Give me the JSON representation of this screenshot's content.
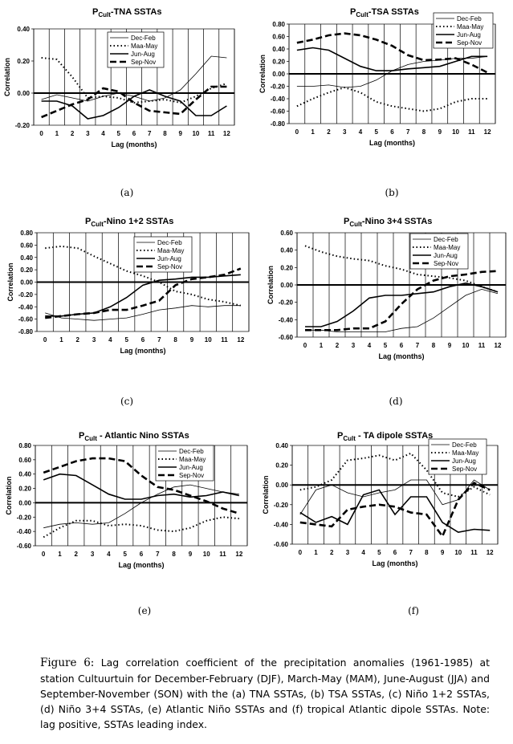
{
  "legend_labels": [
    "Dec-Feb",
    "Maa-May",
    "Jun-Aug",
    "Sep-Nov"
  ],
  "caption": {
    "lead": "Figure 6:",
    "text": "Lag correlation coefficient of the precipitation anomalies (1961-1985) at station Cultuurtuin for December-February (DJF), March-May (MAM), June-August (JJA) and September-November (SON) with the (a) TNA SSTAs, (b) TSA SSTAs, (c) Niño 1+2 SSTAs, (d) Niño 3+4 SSTAs, (e) Atlantic Niño SSTAs and (f) tropical Atlantic dipole SSTAs. Note: lag positive, SSTAs leading index."
  },
  "chart_data": [
    {
      "type": "line",
      "panel": "(a)",
      "title_sub": "Cult",
      "title_rest": "-TNA SSTAs",
      "xlabel": "Lag (months)",
      "ylabel": "Correlation",
      "x": [
        0,
        1,
        2,
        3,
        4,
        5,
        6,
        7,
        8,
        9,
        10,
        11,
        12
      ],
      "ylim": [
        -0.2,
        0.4
      ],
      "yticks": [
        "0.40",
        "0.20",
        "0.00",
        "-0.20"
      ],
      "ytick_values": [
        0.4,
        0.2,
        0.0,
        -0.2
      ],
      "series": [
        {
          "name": "Dec-Feb",
          "values": [
            -0.04,
            -0.01,
            -0.03,
            -0.05,
            -0.02,
            0.0,
            -0.02,
            -0.05,
            -0.03,
            0.02,
            0.12,
            0.23,
            0.22
          ]
        },
        {
          "name": "Maa-May",
          "values": [
            0.22,
            0.21,
            0.1,
            -0.03,
            -0.02,
            -0.03,
            -0.06,
            -0.05,
            -0.04,
            -0.06,
            -0.02,
            0.03,
            0.06
          ]
        },
        {
          "name": "Jun-Aug",
          "values": [
            -0.05,
            -0.05,
            -0.08,
            -0.16,
            -0.14,
            -0.09,
            -0.02,
            0.02,
            -0.02,
            -0.05,
            -0.14,
            -0.14,
            -0.08
          ]
        },
        {
          "name": "Sep-Nov",
          "values": [
            -0.15,
            -0.11,
            -0.07,
            -0.04,
            0.03,
            0.01,
            -0.06,
            -0.11,
            -0.12,
            -0.13,
            -0.04,
            0.04,
            0.04
          ]
        }
      ]
    },
    {
      "type": "line",
      "panel": "(b)",
      "title_sub": "Cult",
      "title_rest": "-TSA SSTAs",
      "xlabel": "Lag (months)",
      "ylabel": "Correlation",
      "x": [
        0,
        1,
        2,
        3,
        4,
        5,
        6,
        7,
        8,
        9,
        10,
        11,
        12
      ],
      "ylim": [
        -0.8,
        0.8
      ],
      "yticks": [
        "0.80",
        "0.60",
        "0.40",
        "0.20",
        "0.00",
        "-0.20",
        "-0.40",
        "-0.60",
        "-0.80"
      ],
      "ytick_values": [
        0.8,
        0.6,
        0.4,
        0.2,
        0.0,
        -0.2,
        -0.4,
        -0.6,
        -0.8
      ],
      "series": [
        {
          "name": "Dec-Feb",
          "values": [
            -0.2,
            -0.2,
            -0.18,
            -0.22,
            -0.2,
            -0.1,
            0.05,
            0.15,
            0.2,
            0.22,
            0.25,
            0.25,
            0.28
          ]
        },
        {
          "name": "Maa-May",
          "values": [
            -0.52,
            -0.4,
            -0.3,
            -0.22,
            -0.3,
            -0.45,
            -0.52,
            -0.56,
            -0.6,
            -0.56,
            -0.45,
            -0.4,
            -0.4
          ]
        },
        {
          "name": "Jun-Aug",
          "values": [
            0.38,
            0.42,
            0.38,
            0.25,
            0.12,
            0.05,
            0.05,
            0.08,
            0.1,
            0.12,
            0.2,
            0.28,
            0.28
          ]
        },
        {
          "name": "Sep-Nov",
          "values": [
            0.5,
            0.55,
            0.62,
            0.65,
            0.62,
            0.55,
            0.45,
            0.3,
            0.22,
            0.23,
            0.25,
            0.15,
            0.02
          ]
        }
      ]
    },
    {
      "type": "line",
      "panel": "(c)",
      "title_sub": "Cult",
      "title_rest": "-Nino 1+2 SSTAs",
      "xlabel": "Lag (months)",
      "ylabel": "Correlation",
      "x": [
        0,
        1,
        2,
        3,
        4,
        5,
        6,
        7,
        8,
        9,
        10,
        11,
        12
      ],
      "ylim": [
        -0.8,
        0.8
      ],
      "yticks": [
        "0.80",
        "0.60",
        "0.40",
        "0.20",
        "0.00",
        "-0.20",
        "-0.40",
        "-0.60",
        "-0.80"
      ],
      "ytick_values": [
        0.8,
        0.6,
        0.4,
        0.2,
        0.0,
        -0.2,
        -0.4,
        -0.6,
        -0.8
      ],
      "series": [
        {
          "name": "Dec-Feb",
          "values": [
            -0.5,
            -0.58,
            -0.6,
            -0.62,
            -0.6,
            -0.58,
            -0.52,
            -0.45,
            -0.42,
            -0.38,
            -0.4,
            -0.38,
            -0.38
          ]
        },
        {
          "name": "Maa-May",
          "values": [
            0.55,
            0.58,
            0.55,
            0.42,
            0.3,
            0.18,
            0.1,
            0.0,
            -0.15,
            -0.2,
            -0.28,
            -0.32,
            -0.38
          ]
        },
        {
          "name": "Jun-Aug",
          "values": [
            -0.55,
            -0.55,
            -0.52,
            -0.5,
            -0.4,
            -0.25,
            -0.05,
            0.03,
            0.05,
            0.08,
            0.08,
            0.1,
            0.12
          ]
        },
        {
          "name": "Sep-Nov",
          "values": [
            -0.58,
            -0.55,
            -0.52,
            -0.5,
            -0.45,
            -0.45,
            -0.38,
            -0.3,
            -0.05,
            0.05,
            0.08,
            0.12,
            0.22
          ]
        }
      ]
    },
    {
      "type": "line",
      "panel": "(d)",
      "title_sub": "Cult",
      "title_rest": "-Nino 3+4 SSTAs",
      "xlabel": "Lag (months)",
      "ylabel": "Correlation",
      "x": [
        0,
        1,
        2,
        3,
        4,
        5,
        6,
        7,
        8,
        9,
        10,
        11,
        12
      ],
      "ylim": [
        -0.6,
        0.6
      ],
      "yticks": [
        "0.60",
        "0.40",
        "0.20",
        "0.00",
        "-0.20",
        "-0.40",
        "-0.60"
      ],
      "ytick_values": [
        0.6,
        0.4,
        0.2,
        0.0,
        -0.2,
        -0.4,
        -0.6
      ],
      "series": [
        {
          "name": "Dec-Feb",
          "values": [
            -0.52,
            -0.52,
            -0.54,
            -0.54,
            -0.54,
            -0.54,
            -0.5,
            -0.48,
            -0.38,
            -0.25,
            -0.12,
            -0.05,
            -0.1
          ]
        },
        {
          "name": "Maa-May",
          "values": [
            0.45,
            0.38,
            0.33,
            0.3,
            0.28,
            0.22,
            0.18,
            0.12,
            0.1,
            0.08,
            0.05,
            -0.02,
            -0.08
          ]
        },
        {
          "name": "Jun-Aug",
          "values": [
            -0.48,
            -0.48,
            -0.42,
            -0.3,
            -0.15,
            -0.12,
            -0.12,
            -0.1,
            -0.08,
            -0.02,
            0.02,
            -0.02,
            -0.08
          ]
        },
        {
          "name": "Sep-Nov",
          "values": [
            -0.52,
            -0.52,
            -0.52,
            -0.5,
            -0.5,
            -0.42,
            -0.22,
            -0.05,
            0.05,
            0.1,
            0.12,
            0.15,
            0.16
          ]
        }
      ]
    },
    {
      "type": "line",
      "panel": "(e)",
      "title_sub": "Cult",
      "title_rest": " - Atlantic Nino SSTAs",
      "xlabel": "Lag (months)",
      "ylabel": "Correlation",
      "x": [
        0,
        1,
        2,
        3,
        4,
        5,
        6,
        7,
        8,
        9,
        10,
        11,
        12
      ],
      "ylim": [
        -0.6,
        0.8
      ],
      "yticks": [
        "0.80",
        "0.60",
        "0.40",
        "0.20",
        "0.00",
        "-0.20",
        "-0.40",
        "-0.60"
      ],
      "ytick_values": [
        0.8,
        0.6,
        0.4,
        0.2,
        0.0,
        -0.2,
        -0.4,
        -0.6
      ],
      "series": [
        {
          "name": "Dec-Feb",
          "values": [
            -0.35,
            -0.3,
            -0.28,
            -0.3,
            -0.28,
            -0.15,
            0.0,
            0.12,
            0.22,
            0.25,
            0.2,
            0.15,
            0.12
          ]
        },
        {
          "name": "Maa-May",
          "values": [
            -0.48,
            -0.35,
            -0.25,
            -0.25,
            -0.32,
            -0.3,
            -0.32,
            -0.38,
            -0.4,
            -0.35,
            -0.25,
            -0.2,
            -0.22
          ]
        },
        {
          "name": "Jun-Aug",
          "values": [
            0.32,
            0.4,
            0.38,
            0.25,
            0.12,
            0.05,
            0.05,
            0.1,
            0.12,
            0.08,
            0.1,
            0.15,
            0.1
          ]
        },
        {
          "name": "Sep-Nov",
          "values": [
            0.42,
            0.5,
            0.58,
            0.62,
            0.62,
            0.58,
            0.38,
            0.22,
            0.18,
            0.1,
            0.02,
            -0.08,
            -0.15
          ]
        }
      ]
    },
    {
      "type": "line",
      "panel": "(f)",
      "title_sub": "Cult",
      "title_rest": " - TA dipole SSTAs",
      "xlabel": "Lag (months)",
      "ylabel": "Correlation",
      "x": [
        0,
        1,
        2,
        3,
        4,
        5,
        6,
        7,
        8,
        9,
        10,
        11,
        12
      ],
      "ylim": [
        -0.6,
        0.4
      ],
      "yticks": [
        "0.40",
        "0.20",
        "0.00",
        "-0.20",
        "-0.40",
        "-0.60"
      ],
      "ytick_values": [
        0.4,
        0.2,
        0.0,
        -0.2,
        -0.4,
        -0.6
      ],
      "series": [
        {
          "name": "Dec-Feb",
          "values": [
            -0.3,
            -0.05,
            0.0,
            -0.08,
            -0.12,
            -0.08,
            -0.05,
            0.05,
            0.05,
            -0.2,
            -0.15,
            0.05,
            -0.05
          ]
        },
        {
          "name": "Maa-May",
          "values": [
            -0.05,
            -0.02,
            0.05,
            0.25,
            0.27,
            0.3,
            0.25,
            0.32,
            0.15,
            -0.08,
            -0.12,
            -0.02,
            -0.1
          ]
        },
        {
          "name": "Jun-Aug",
          "values": [
            -0.28,
            -0.38,
            -0.32,
            -0.4,
            -0.1,
            -0.05,
            -0.3,
            -0.12,
            -0.12,
            -0.38,
            -0.48,
            -0.45,
            -0.46
          ]
        },
        {
          "name": "Sep-Nov",
          "values": [
            -0.38,
            -0.4,
            -0.42,
            -0.25,
            -0.22,
            -0.2,
            -0.22,
            -0.28,
            -0.3,
            -0.52,
            -0.15,
            0.02,
            -0.05
          ]
        }
      ]
    }
  ]
}
